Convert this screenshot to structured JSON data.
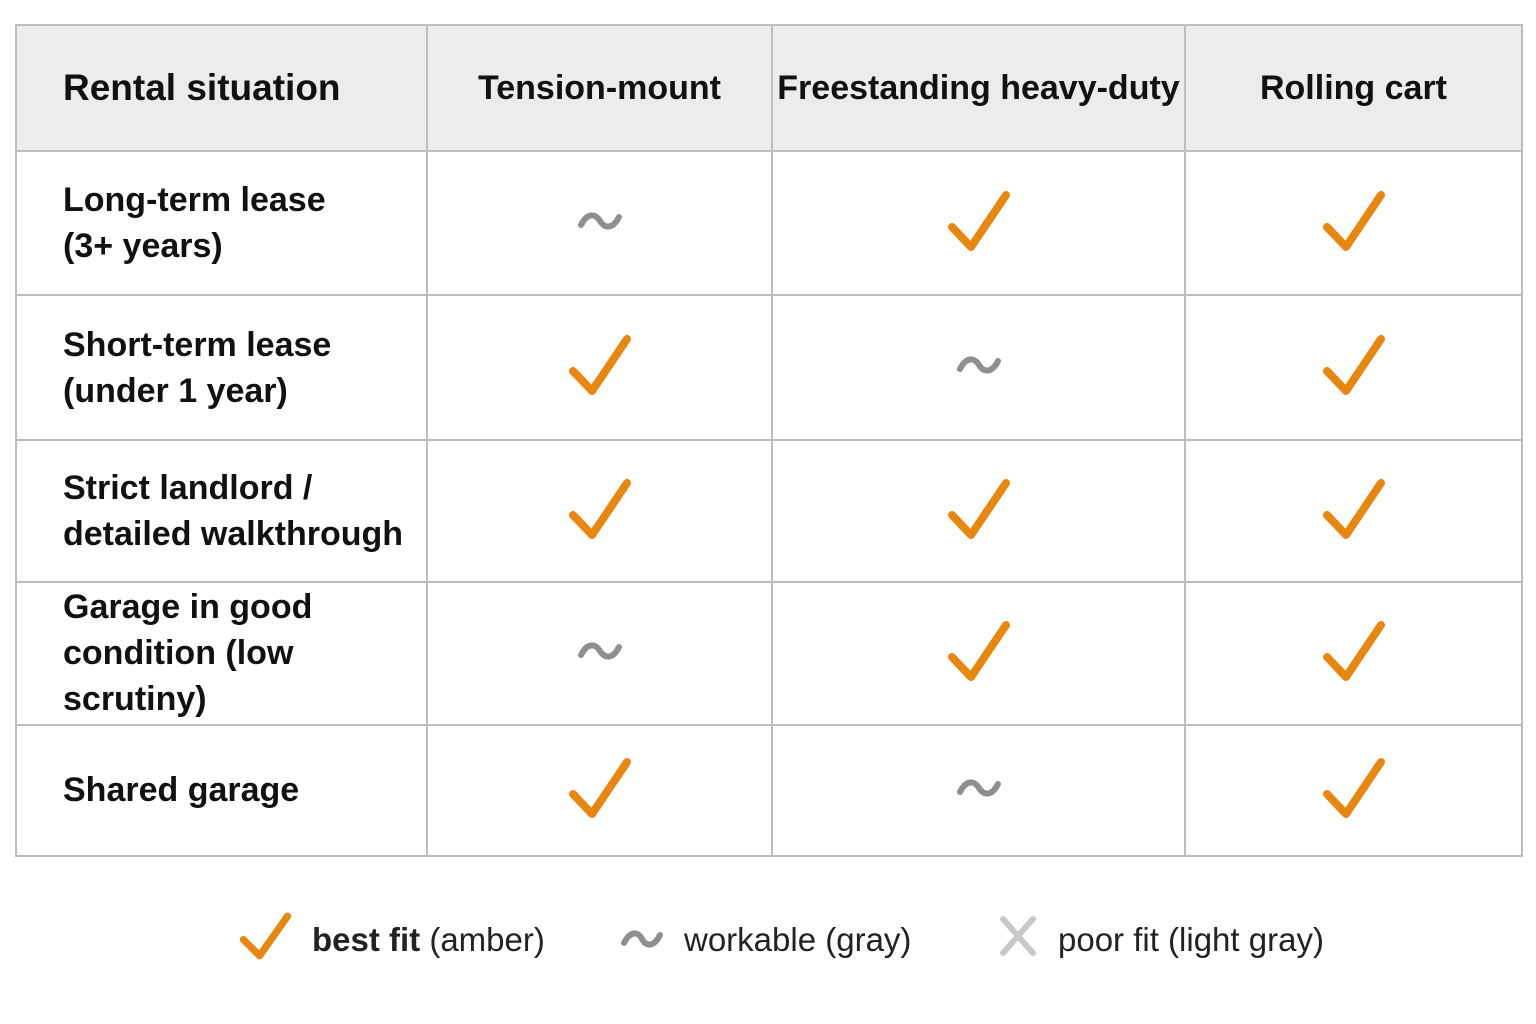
{
  "colors": {
    "best": "#e8860f",
    "workable": "#8f8f8f",
    "poor": "#c8c8c8",
    "header_bg": "#ececec",
    "grid": "#bdbdbd"
  },
  "table": {
    "columns": [
      "Rental situation",
      "Tension-mount",
      "Freestanding heavy-duty",
      "Rolling cart"
    ],
    "rows": [
      {
        "label_lines": [
          "Long-term lease",
          "(3+ years)"
        ],
        "cells": [
          "workable",
          "best",
          "best"
        ]
      },
      {
        "label_lines": [
          "Short-term lease",
          "(under 1 year)"
        ],
        "cells": [
          "best",
          "workable",
          "best"
        ]
      },
      {
        "label_lines": [
          "Strict landlord /",
          "detailed walkthrough"
        ],
        "cells": [
          "best",
          "best",
          "best"
        ]
      },
      {
        "label_lines": [
          "Garage in good",
          "condition (low scrutiny)"
        ],
        "cells": [
          "workable",
          "best",
          "best"
        ]
      },
      {
        "label_lines": [
          "Shared garage"
        ],
        "cells": [
          "best",
          "workable",
          "best"
        ]
      }
    ]
  },
  "legend": [
    {
      "icon": "check-icon",
      "bold": "best fit",
      "rest": " (amber)"
    },
    {
      "icon": "tilde-icon",
      "bold": "",
      "rest": "workable (gray)"
    },
    {
      "icon": "x-icon",
      "bold": "",
      "rest": "poor fit (light gray)"
    }
  ]
}
